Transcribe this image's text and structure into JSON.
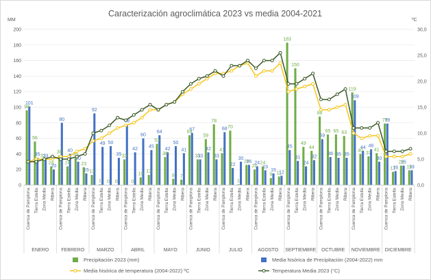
{
  "chart_data": {
    "type": "bar",
    "title": "Caracterización  agroclimática  2023 vs media 2004-2021",
    "y_left_unit": "MM",
    "y_right_unit": "ºC",
    "y_left_range": [
      0,
      200
    ],
    "y_right_range": [
      0,
      30
    ],
    "y_left_ticks": [
      "0",
      "20",
      "40",
      "60",
      "80",
      "100",
      "120",
      "140",
      "160",
      "180",
      "200"
    ],
    "y_right_ticks": [
      "0,0",
      "5,0",
      "10,0",
      "15,0",
      "20,0",
      "25,0",
      "30,0"
    ],
    "zones": [
      "Cuenca de Pamplona",
      "Tierra Estella",
      "Zona Media",
      "Ribera"
    ],
    "months": [
      "ENERO",
      "FEBRERO",
      "MARZO",
      "ABRIL",
      "MAYO",
      "JUNIO",
      "JULIO",
      "AGOSTO",
      "SEPTIEMBRE",
      "OCTUBRE",
      "NOVIEMBRE",
      "DICIEMBRE"
    ],
    "series": [
      {
        "name": "Precipitación 2023  (mm)",
        "kind": "bar",
        "color": "#70ad47",
        "values": [
          96,
          56,
          33,
          24,
          38,
          24,
          35,
          23,
          13,
          1,
          0,
          0,
          33,
          0,
          10,
          13,
          53,
          36,
          8,
          7,
          64,
          33,
          59,
          78,
          41,
          70,
          1,
          26,
          20,
          24,
          9,
          11,
          183,
          150,
          49,
          44,
          88,
          65,
          65,
          63,
          119,
          40,
          37,
          41,
          79,
          17,
          25,
          19
        ]
      },
      {
        "name": "Media hisórica de Precipitación (2004-2022) mm",
        "kind": "bar",
        "color": "#4472c4",
        "values": [
          101,
          35,
          33,
          20,
          80,
          40,
          30,
          15,
          92,
          49,
          50,
          35,
          78,
          42,
          60,
          45,
          64,
          42,
          50,
          41,
          67,
          33,
          42,
          33,
          68,
          22,
          30,
          26,
          24,
          19,
          15,
          12,
          45,
          31,
          24,
          32,
          59,
          36,
          35,
          35,
          109,
          44,
          46,
          30,
          79,
          18,
          25,
          19
        ]
      },
      {
        "name": "Media hisórica de temperatura   (2004-2022) ºC",
        "kind": "line",
        "color": "#f5c518",
        "values": [
          4.5,
          5.0,
          5.0,
          5.0,
          5.5,
          5.5,
          6.5,
          7.0,
          8.5,
          9.0,
          10.0,
          11.0,
          11.5,
          12.0,
          13.0,
          14.5,
          14.5,
          15.5,
          16.0,
          17.5,
          18.5,
          19.5,
          20.5,
          21.5,
          21.5,
          22.0,
          23.0,
          23.5,
          21.0,
          22.0,
          22.0,
          23.5,
          18.0,
          18.5,
          19.0,
          19.5,
          14.5,
          14.5,
          15.0,
          15.5,
          10.0,
          9.0,
          9.5,
          9.5,
          5.5,
          5.5,
          5.5,
          6.0
        ]
      },
      {
        "name": "Temperatura  Media 2023 (°C)",
        "kind": "line",
        "color": "#375623",
        "values": [
          4.5,
          4.5,
          5.0,
          5.5,
          5.0,
          5.0,
          5.5,
          6.0,
          10.0,
          10.5,
          11.5,
          13.0,
          12.5,
          13.5,
          14.5,
          15.5,
          14.5,
          15.5,
          16.0,
          18.0,
          19.5,
          20.5,
          21.0,
          22.0,
          21.0,
          23.0,
          23.0,
          24.0,
          22.5,
          24.0,
          24.0,
          25.5,
          19.5,
          19.5,
          20.5,
          21.5,
          16.5,
          16.5,
          17.5,
          18.5,
          11.0,
          11.0,
          11.0,
          12.0,
          6.5,
          6.5,
          6.5,
          7.0
        ]
      }
    ],
    "legend_position": "bottom"
  }
}
